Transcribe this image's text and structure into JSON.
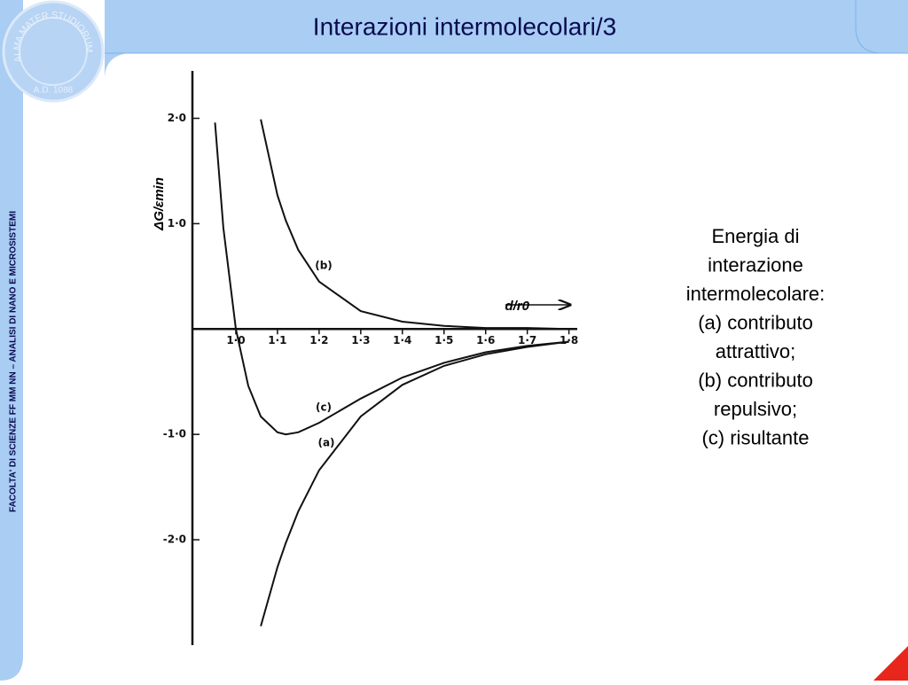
{
  "header": {
    "title": "Interazioni intermolecolari/3"
  },
  "sidebar": {
    "text": "FACOLTA' DI SCIENZE FF MM NN – ANALISI DI NANO E MICROSISTEMI"
  },
  "logo": {
    "motto": "ALMA MATER STUDIORUM",
    "year": "A.D. 1088"
  },
  "caption": {
    "lines": [
      "Energia di",
      "interazione",
      "intermolecolare:",
      "(a) contributo",
      "attrattivo;",
      "(b) contributo",
      "repulsivo;",
      "(c) risultante"
    ]
  },
  "chart_data": {
    "type": "line",
    "x_label": "d/r0",
    "y_label": "ΔG/εmin",
    "x": [
      0.95,
      0.97,
      1.0,
      1.03,
      1.06,
      1.1,
      1.12,
      1.15,
      1.2,
      1.3,
      1.4,
      1.5,
      1.6,
      1.7,
      1.8
    ],
    "series": [
      {
        "name": "(a)",
        "color": "#111111",
        "values": [
          null,
          null,
          null,
          null,
          -2.82,
          -2.26,
          -2.03,
          -1.73,
          -1.34,
          -0.83,
          -0.53,
          -0.35,
          -0.24,
          -0.17,
          -0.12
        ]
      },
      {
        "name": "(b)",
        "color": "#111111",
        "values": [
          null,
          null,
          null,
          null,
          1.99,
          1.27,
          1.03,
          0.75,
          0.45,
          0.17,
          0.07,
          0.03,
          0.01,
          0.01,
          0.0
        ]
      },
      {
        "name": "(c)",
        "color": "#111111",
        "values": [
          1.96,
          0.96,
          0,
          -0.54,
          -0.83,
          -0.98,
          -1.0,
          -0.98,
          -0.89,
          -0.66,
          -0.46,
          -0.32,
          -0.22,
          -0.16,
          -0.12
        ]
      }
    ],
    "xlim": [
      0.9,
      1.82
    ],
    "ylim": [
      -3.0,
      2.45
    ],
    "xticks": [
      {
        "value": 1.0,
        "label": "1·0"
      },
      {
        "value": 1.1,
        "label": "1·1"
      },
      {
        "value": 1.2,
        "label": "1·2"
      },
      {
        "value": 1.3,
        "label": "1·3"
      },
      {
        "value": 1.4,
        "label": "1·4"
      },
      {
        "value": 1.5,
        "label": "1·5"
      },
      {
        "value": 1.6,
        "label": "1·6"
      },
      {
        "value": 1.7,
        "label": "1·7"
      },
      {
        "value": 1.8,
        "label": "1·8"
      }
    ],
    "yticks": [
      {
        "value": 2.0,
        "label": "2·0"
      },
      {
        "value": 1.0,
        "label": "1·0"
      },
      {
        "value": -1.0,
        "label": "-1·0"
      },
      {
        "value": -2.0,
        "label": "-2·0"
      }
    ]
  }
}
